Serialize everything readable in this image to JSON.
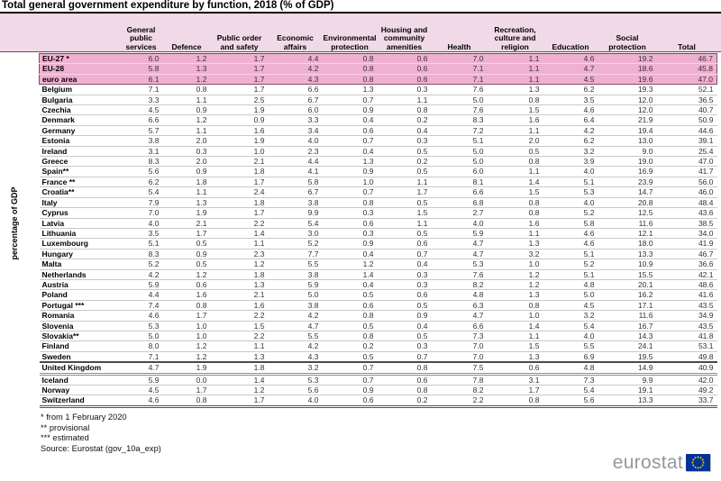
{
  "title": "Total general government expenditure by function, 2018 (% of GDP)",
  "y_axis_label": "percentage of GDP",
  "chart_data": {
    "type": "table",
    "title": "Total general government expenditure by function, 2018 (% of GDP)",
    "unit": "% of GDP",
    "columns": [
      "General public services",
      "Defence",
      "Public order and safety",
      "Economic affairs",
      "Environmental protection",
      "Housing and community amenities",
      "Health",
      "Recreation, culture and religion",
      "Education",
      "Social protection",
      "Total"
    ],
    "rows": [
      {
        "name": "EU-27 *",
        "group": "eu",
        "values": [
          "6.0",
          "1.2",
          "1.7",
          "4.4",
          "0.8",
          "0.6",
          "7.0",
          "1.1",
          "4.6",
          "19.2",
          "46.7"
        ]
      },
      {
        "name": "EU-28",
        "group": "eu",
        "values": [
          "5.8",
          "1.3",
          "1.7",
          "4.2",
          "0.8",
          "0.6",
          "7.1",
          "1.1",
          "4.7",
          "18.6",
          "45.8"
        ]
      },
      {
        "name": "euro area",
        "group": "eu",
        "values": [
          "6.1",
          "1.2",
          "1.7",
          "4.3",
          "0.8",
          "0.6",
          "7.1",
          "1.1",
          "4.5",
          "19.6",
          "47.0"
        ]
      },
      {
        "name": "Belgium",
        "group": "member",
        "values": [
          "7.1",
          "0.8",
          "1.7",
          "6.6",
          "1.3",
          "0.3",
          "7.6",
          "1.3",
          "6.2",
          "19.3",
          "52.1"
        ]
      },
      {
        "name": "Bulgaria",
        "group": "member",
        "values": [
          "3.3",
          "1.1",
          "2.5",
          "6.7",
          "0.7",
          "1.1",
          "5.0",
          "0.8",
          "3.5",
          "12.0",
          "36.5"
        ]
      },
      {
        "name": "Czechia",
        "group": "member",
        "values": [
          "4.5",
          "0.9",
          "1.9",
          "6.0",
          "0.9",
          "0.8",
          "7.6",
          "1.5",
          "4.6",
          "12.0",
          "40.7"
        ]
      },
      {
        "name": "Denmark",
        "group": "member",
        "values": [
          "6.6",
          "1.2",
          "0.9",
          "3.3",
          "0.4",
          "0.2",
          "8.3",
          "1.6",
          "6.4",
          "21.9",
          "50.9"
        ]
      },
      {
        "name": "Germany",
        "group": "member",
        "values": [
          "5.7",
          "1.1",
          "1.6",
          "3.4",
          "0.6",
          "0.4",
          "7.2",
          "1.1",
          "4.2",
          "19.4",
          "44.6"
        ]
      },
      {
        "name": "Estonia",
        "group": "member",
        "values": [
          "3.8",
          "2.0",
          "1.9",
          "4.0",
          "0.7",
          "0.3",
          "5.1",
          "2.0",
          "6.2",
          "13.0",
          "39.1"
        ]
      },
      {
        "name": "Ireland",
        "group": "member",
        "values": [
          "3.1",
          "0.3",
          "1.0",
          "2.3",
          "0.4",
          "0.5",
          "5.0",
          "0.5",
          "3.2",
          "9.0",
          "25.4"
        ]
      },
      {
        "name": "Greece",
        "group": "member",
        "values": [
          "8.3",
          "2.0",
          "2.1",
          "4.4",
          "1.3",
          "0.2",
          "5.0",
          "0.8",
          "3.9",
          "19.0",
          "47.0"
        ]
      },
      {
        "name": "Spain**",
        "group": "member",
        "values": [
          "5.6",
          "0.9",
          "1.8",
          "4.1",
          "0.9",
          "0.5",
          "6.0",
          "1.1",
          "4.0",
          "16.9",
          "41.7"
        ]
      },
      {
        "name": "France **",
        "group": "member",
        "values": [
          "6.2",
          "1.8",
          "1.7",
          "5.8",
          "1.0",
          "1.1",
          "8.1",
          "1.4",
          "5.1",
          "23.9",
          "56.0"
        ]
      },
      {
        "name": "Croatia**",
        "group": "member",
        "values": [
          "5.4",
          "1.1",
          "2.4",
          "6.7",
          "0.7",
          "1.7",
          "6.6",
          "1.5",
          "5.3",
          "14.7",
          "46.0"
        ]
      },
      {
        "name": "Italy",
        "group": "member",
        "values": [
          "7.9",
          "1.3",
          "1.8",
          "3.8",
          "0.8",
          "0.5",
          "6.8",
          "0.8",
          "4.0",
          "20.8",
          "48.4"
        ]
      },
      {
        "name": "Cyprus",
        "group": "member",
        "values": [
          "7.0",
          "1.9",
          "1.7",
          "9.9",
          "0.3",
          "1.5",
          "2.7",
          "0.8",
          "5.2",
          "12.5",
          "43.6"
        ]
      },
      {
        "name": "Latvia",
        "group": "member",
        "values": [
          "4.0",
          "2.1",
          "2.2",
          "5.4",
          "0.6",
          "1.1",
          "4.0",
          "1.6",
          "5.8",
          "11.6",
          "38.5"
        ]
      },
      {
        "name": "Lithuania",
        "group": "member",
        "values": [
          "3.5",
          "1.7",
          "1.4",
          "3.0",
          "0.3",
          "0.5",
          "5.9",
          "1.1",
          "4.6",
          "12.1",
          "34.0"
        ]
      },
      {
        "name": "Luxembourg",
        "group": "member",
        "values": [
          "5.1",
          "0.5",
          "1.1",
          "5.2",
          "0.9",
          "0.6",
          "4.7",
          "1.3",
          "4.6",
          "18.0",
          "41.9"
        ]
      },
      {
        "name": "Hungary",
        "group": "member",
        "values": [
          "8.3",
          "0.9",
          "2.3",
          "7.7",
          "0.4",
          "0.7",
          "4.7",
          "3.2",
          "5.1",
          "13.3",
          "46.7"
        ]
      },
      {
        "name": "Malta",
        "group": "member",
        "values": [
          "5.2",
          "0.5",
          "1.2",
          "5.5",
          "1.2",
          "0.4",
          "5.3",
          "1.0",
          "5.2",
          "10.9",
          "36.6"
        ]
      },
      {
        "name": "Netherlands",
        "group": "member",
        "values": [
          "4.2",
          "1.2",
          "1.8",
          "3.8",
          "1.4",
          "0.3",
          "7.6",
          "1.2",
          "5.1",
          "15.5",
          "42.1"
        ]
      },
      {
        "name": "Austria",
        "group": "member",
        "values": [
          "5.9",
          "0.6",
          "1.3",
          "5.9",
          "0.4",
          "0.3",
          "8.2",
          "1.2",
          "4.8",
          "20.1",
          "48.6"
        ]
      },
      {
        "name": "Poland",
        "group": "member",
        "values": [
          "4.4",
          "1.6",
          "2.1",
          "5.0",
          "0.5",
          "0.6",
          "4.8",
          "1.3",
          "5.0",
          "16.2",
          "41.6"
        ]
      },
      {
        "name": "Portugal ***",
        "group": "member",
        "values": [
          "7.4",
          "0.8",
          "1.6",
          "3.8",
          "0.6",
          "0.5",
          "6.3",
          "0.8",
          "4.5",
          "17.1",
          "43.5"
        ]
      },
      {
        "name": "Romania",
        "group": "member",
        "values": [
          "4.6",
          "1.7",
          "2.2",
          "4.2",
          "0.8",
          "0.9",
          "4.7",
          "1.0",
          "3.2",
          "11.6",
          "34.9"
        ]
      },
      {
        "name": "Slovenia",
        "group": "member",
        "values": [
          "5.3",
          "1.0",
          "1.5",
          "4.7",
          "0.5",
          "0.4",
          "6.6",
          "1.4",
          "5.4",
          "16.7",
          "43.5"
        ]
      },
      {
        "name": "Slovakia**",
        "group": "member",
        "values": [
          "5.0",
          "1.0",
          "2.2",
          "5.5",
          "0.8",
          "0.5",
          "7.3",
          "1.1",
          "4.0",
          "14.3",
          "41.8"
        ]
      },
      {
        "name": "Finland",
        "group": "member",
        "values": [
          "8.0",
          "1.2",
          "1.1",
          "4.2",
          "0.2",
          "0.3",
          "7.0",
          "1.5",
          "5.5",
          "24.1",
          "53.1"
        ]
      },
      {
        "name": "Sweden",
        "group": "member",
        "values": [
          "7.1",
          "1.2",
          "1.3",
          "4.3",
          "0.5",
          "0.7",
          "7.0",
          "1.3",
          "6.9",
          "19.5",
          "49.8"
        ]
      },
      {
        "name": "United Kingdom",
        "group": "uk",
        "values": [
          "4.7",
          "1.9",
          "1.8",
          "3.2",
          "0.7",
          "0.8",
          "7.5",
          "0.6",
          "4.8",
          "14.9",
          "40.9"
        ]
      },
      {
        "name": "Iceland",
        "group": "efta",
        "values": [
          "5.9",
          "0.0",
          "1.4",
          "5.3",
          "0.7",
          "0.6",
          "7.8",
          "3.1",
          "7.3",
          "9.9",
          "42.0"
        ]
      },
      {
        "name": "Norway",
        "group": "efta",
        "values": [
          "4.5",
          "1.7",
          "1.2",
          "5.6",
          "0.9",
          "0.8",
          "8.2",
          "1.7",
          "5.4",
          "19.1",
          "49.2"
        ]
      },
      {
        "name": "Switzerland",
        "group": "efta",
        "values": [
          "4.6",
          "0.8",
          "1.7",
          "4.0",
          "0.6",
          "0.2",
          "2.2",
          "0.8",
          "5.6",
          "13.3",
          "33.7"
        ]
      }
    ]
  },
  "footnotes": [
    "* from 1 February 2020",
    "** provisional",
    "*** estimated",
    "Source: Eurostat (gov_10a_exp)"
  ],
  "logo": {
    "text": "eurostat"
  },
  "colors": {
    "header_bg": "#f2d9e8",
    "eu_row_bg": "#f0b0d2",
    "eu_block_border": "#864d6e",
    "row_separator": "#c9c9c9",
    "flag_blue": "#003399",
    "star_yellow": "#ffcc00",
    "logo_gray": "#8f9aa0"
  }
}
